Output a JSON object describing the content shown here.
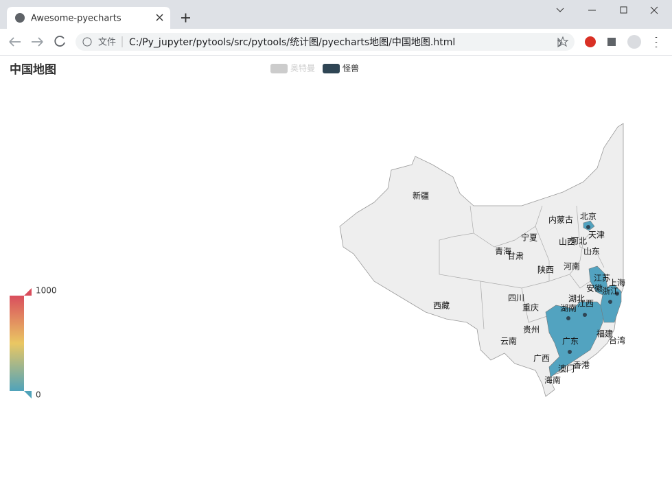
{
  "browser": {
    "tab_title": "Awesome-pyecharts",
    "address_label": "文件",
    "url": "C:/Py_jupyter/pytools/src/pytools/统计图/pyecharts地图/中国地图.html"
  },
  "chart": {
    "title": "中国地图",
    "legend": [
      {
        "name": "奥特曼",
        "color": "#cccccc",
        "active": false
      },
      {
        "name": "怪兽",
        "color": "#2f4554",
        "active": true
      }
    ],
    "visual_map": {
      "max": 1000,
      "min": 0
    },
    "regions": [
      "新疆",
      "内蒙古",
      "北京",
      "天津",
      "宁夏",
      "山西",
      "河北",
      "青海",
      "甘肃",
      "山东",
      "陕西",
      "河南",
      "江苏",
      "上海",
      "安徽",
      "浙江",
      "四川",
      "湖北",
      "西藏",
      "重庆",
      "湖南",
      "江西",
      "贵州",
      "福建",
      "云南",
      "广东",
      "台湾",
      "广西",
      "澳门",
      "香港",
      "海南"
    ]
  }
}
